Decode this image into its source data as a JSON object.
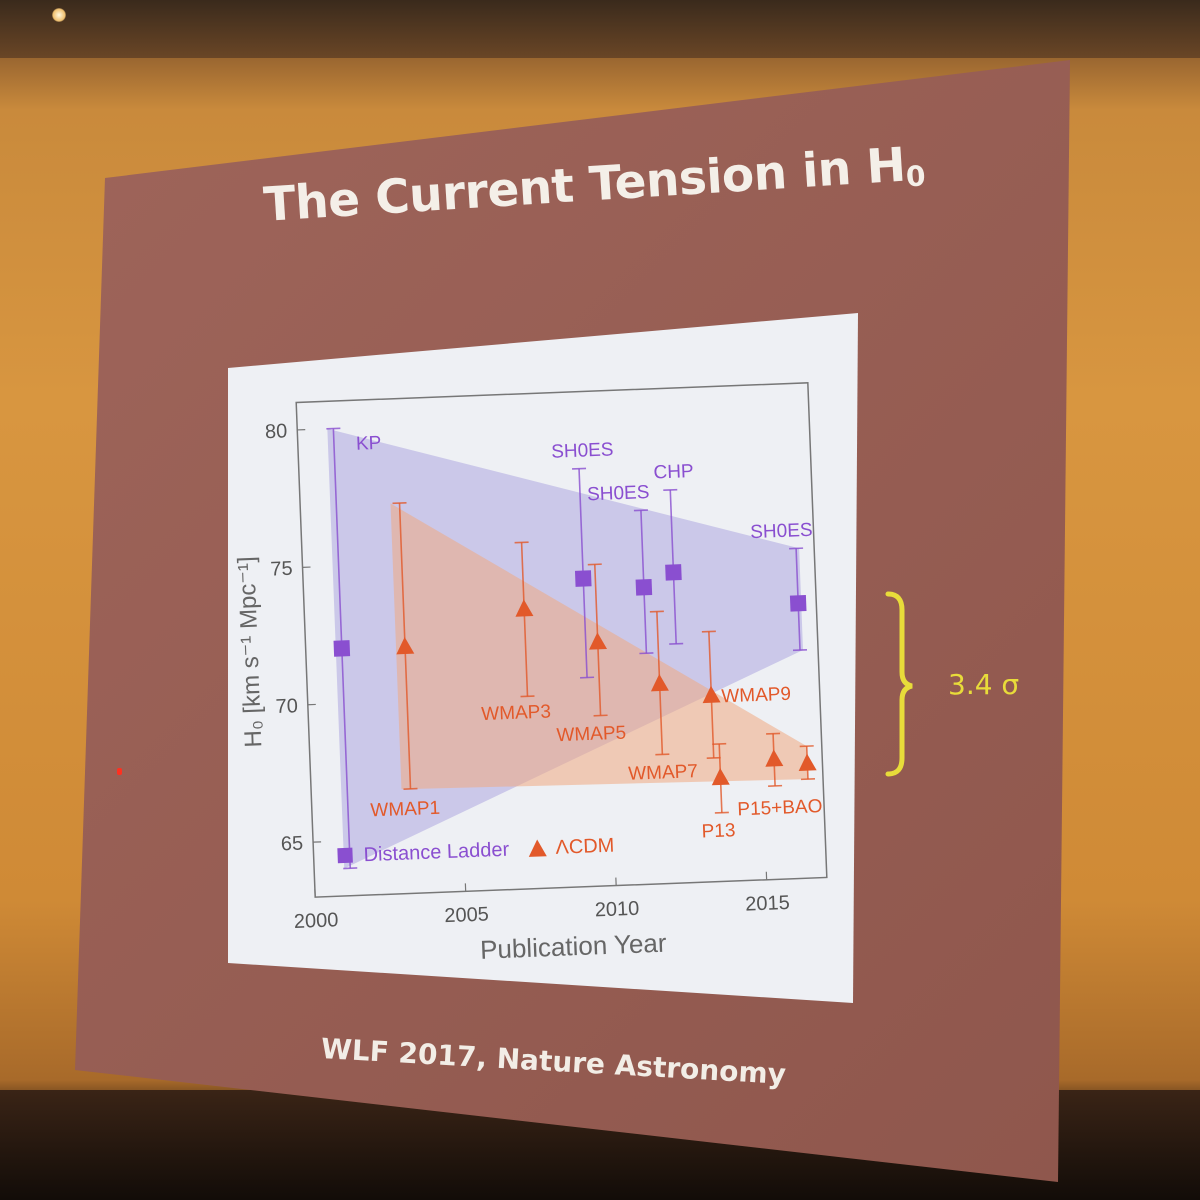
{
  "slide": {
    "title_main": "The Current Tension in H",
    "title_sub": "0",
    "citation": "WLF 2017, Nature Astronomy",
    "annotation": "3.4 σ"
  },
  "colors": {
    "distance_ladder": "#8a4fd0",
    "lcdm": "#e2592a",
    "annotation": "#e8dc3a",
    "slide_bg": "#9a5d52"
  },
  "chart_data": {
    "type": "scatter",
    "xlabel": "Publication Year",
    "ylabel": "H₀ [km s⁻¹ Mpc⁻¹]",
    "xlim": [
      2000,
      2017
    ],
    "ylim": [
      63,
      81
    ],
    "x_ticks": [
      2000,
      2005,
      2010,
      2015
    ],
    "y_ticks": [
      65,
      70,
      75,
      80
    ],
    "legend": "bottom-left",
    "series": [
      {
        "name": "Distance Ladder",
        "marker": "square",
        "color": "#8a4fd0",
        "points": [
          {
            "x": 2001.2,
            "y": 72.0,
            "lo": 64.0,
            "hi": 80.0,
            "label": "KP"
          },
          {
            "x": 2009.3,
            "y": 74.2,
            "lo": 70.6,
            "hi": 78.2,
            "label": "SH0ES"
          },
          {
            "x": 2011.3,
            "y": 73.8,
            "lo": 71.4,
            "hi": 76.6,
            "label": "SH0ES"
          },
          {
            "x": 2012.3,
            "y": 74.3,
            "lo": 71.7,
            "hi": 77.3,
            "label": "CHP"
          },
          {
            "x": 2016.4,
            "y": 73.0,
            "lo": 71.3,
            "hi": 75.0,
            "label": "SH0ES"
          }
        ]
      },
      {
        "name": "ΛCDM",
        "marker": "triangle",
        "color": "#e2592a",
        "points": [
          {
            "x": 2003.3,
            "y": 72.0,
            "lo": 66.8,
            "hi": 77.2,
            "label": "WMAP1"
          },
          {
            "x": 2007.3,
            "y": 73.2,
            "lo": 70.0,
            "hi": 75.6,
            "label": "WMAP3"
          },
          {
            "x": 2009.7,
            "y": 71.9,
            "lo": 69.2,
            "hi": 74.7,
            "label": "WMAP5"
          },
          {
            "x": 2011.7,
            "y": 70.3,
            "lo": 67.7,
            "hi": 72.9,
            "label": "WMAP7"
          },
          {
            "x": 2013.4,
            "y": 69.8,
            "lo": 67.5,
            "hi": 72.1,
            "label": "WMAP9"
          },
          {
            "x": 2013.6,
            "y": 66.8,
            "lo": 65.5,
            "hi": 68.0,
            "label": "P13"
          },
          {
            "x": 2015.4,
            "y": 67.4,
            "lo": 66.4,
            "hi": 68.3,
            "label": "P15"
          },
          {
            "x": 2016.5,
            "y": 67.2,
            "lo": 66.6,
            "hi": 67.8,
            "label": "BAO"
          }
        ]
      }
    ],
    "bands": [
      {
        "series": "Distance Ladder",
        "upper": [
          [
            2001,
            80
          ],
          [
            2016.5,
            75
          ]
        ],
        "lower": [
          [
            2001,
            64
          ],
          [
            2016.5,
            71.3
          ]
        ]
      },
      {
        "series": "ΛCDM",
        "upper": [
          [
            2003,
            77.2
          ],
          [
            2016.5,
            67.8
          ]
        ],
        "lower": [
          [
            2003,
            66.8
          ],
          [
            2016.5,
            66.6
          ]
        ]
      }
    ],
    "label_texts": {
      "point_labels": [
        "KP",
        "SH0ES",
        "SH0ES",
        "CHP",
        "SH0ES",
        "WMAP1",
        "WMAP3",
        "WMAP5",
        "WMAP7",
        "WMAP9",
        "P13",
        "P15+BAO"
      ]
    }
  }
}
